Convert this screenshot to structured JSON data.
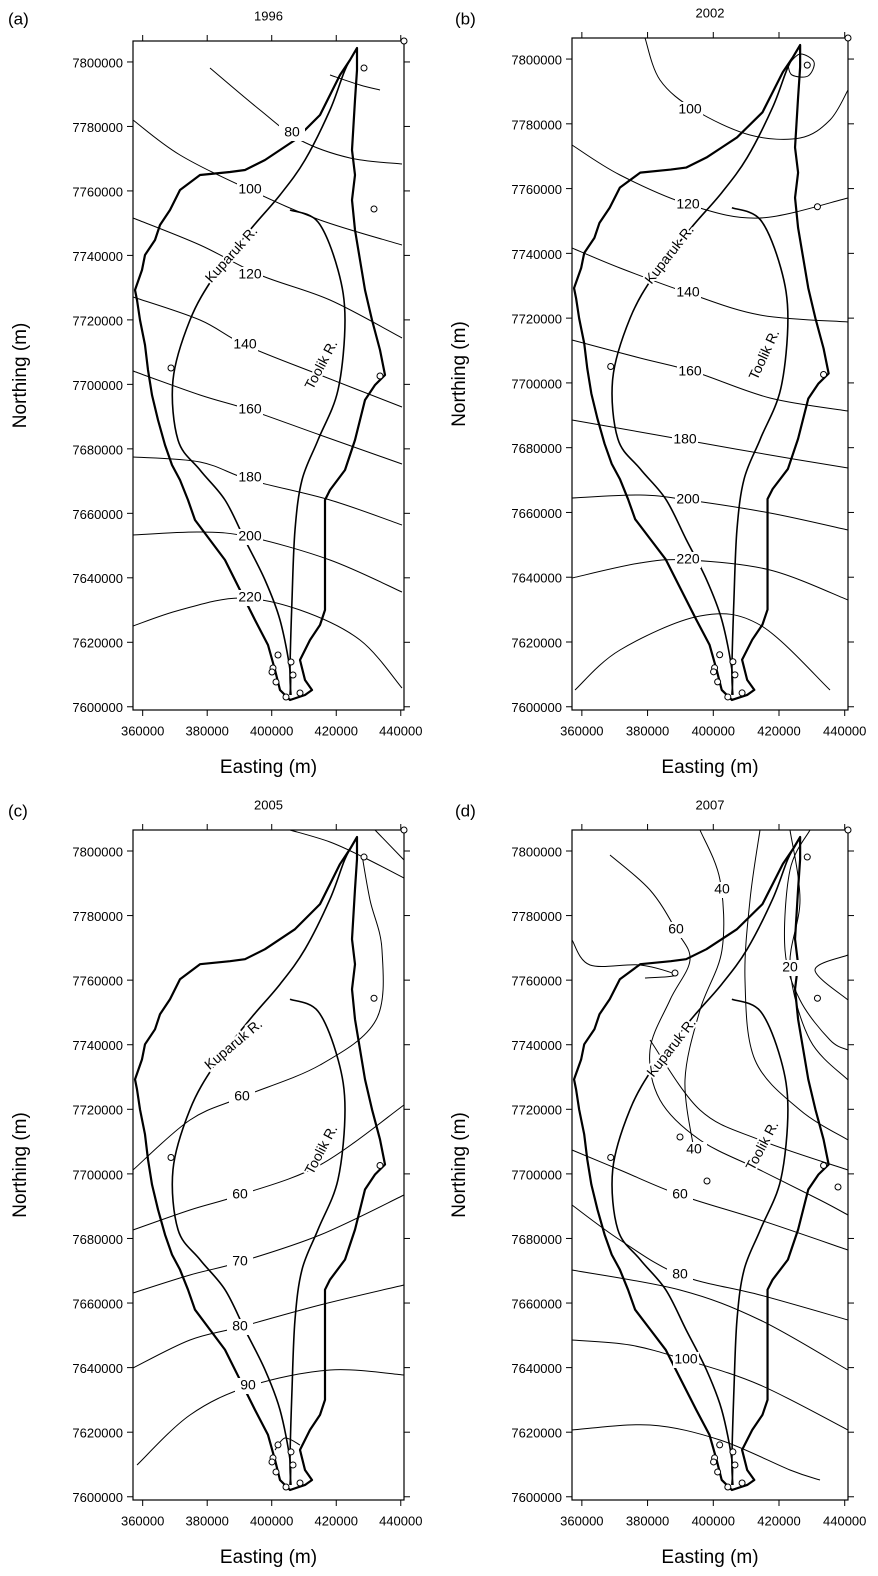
{
  "panels": [
    {
      "label": "(a)",
      "title": "1996",
      "xlabel": "Easting (m)",
      "ylabel": "Northing (m)",
      "xlim": [
        357000,
        441000
      ],
      "ylim": [
        7599000,
        7806500
      ],
      "xticks": [
        360000,
        380000,
        400000,
        420000,
        440000
      ],
      "yticks": [
        7600000,
        7620000,
        7640000,
        7660000,
        7680000,
        7700000,
        7720000,
        7740000,
        7760000,
        7780000,
        7800000
      ],
      "contour_labels": [
        80,
        100,
        120,
        140,
        160,
        180,
        200,
        220
      ],
      "rivers": [
        "Kuparuk R.",
        "Toolik R."
      ]
    },
    {
      "label": "(b)",
      "title": "2002",
      "xlabel": "Easting (m)",
      "ylabel": "Northing (m)",
      "xlim": [
        357000,
        441000
      ],
      "ylim": [
        7599000,
        7806500
      ],
      "xticks": [
        360000,
        380000,
        400000,
        420000,
        440000
      ],
      "yticks": [
        7600000,
        7620000,
        7640000,
        7660000,
        7680000,
        7700000,
        7720000,
        7740000,
        7760000,
        7780000,
        7800000
      ],
      "contour_labels": [
        100,
        120,
        140,
        160,
        180,
        200,
        220
      ],
      "rivers": [
        "Kuparuk R.",
        "Toolik R."
      ]
    },
    {
      "label": "(c)",
      "title": "2005",
      "xlabel": "Easting (m)",
      "ylabel": "Northing (m)",
      "xlim": [
        357000,
        441000
      ],
      "ylim": [
        7599000,
        7806500
      ],
      "xticks": [
        360000,
        380000,
        400000,
        420000,
        440000
      ],
      "yticks": [
        7600000,
        7620000,
        7640000,
        7660000,
        7680000,
        7700000,
        7720000,
        7740000,
        7760000,
        7780000,
        7800000
      ],
      "contour_labels": [
        60,
        60,
        70,
        80,
        90
      ],
      "rivers": [
        "Kuparuk R.",
        "Toolik R."
      ]
    },
    {
      "label": "(d)",
      "title": "2007",
      "xlabel": "Easting (m)",
      "ylabel": "Northing (m)",
      "xlim": [
        357000,
        441000
      ],
      "ylim": [
        7599000,
        7806500
      ],
      "xticks": [
        360000,
        380000,
        400000,
        420000,
        440000
      ],
      "yticks": [
        7600000,
        7620000,
        7640000,
        7660000,
        7680000,
        7700000,
        7720000,
        7740000,
        7760000,
        7780000,
        7800000
      ],
      "contour_labels": [
        60,
        40,
        20,
        40,
        60,
        80,
        100
      ],
      "rivers": [
        "Kuparuk R.",
        "Toolik R."
      ]
    }
  ]
}
